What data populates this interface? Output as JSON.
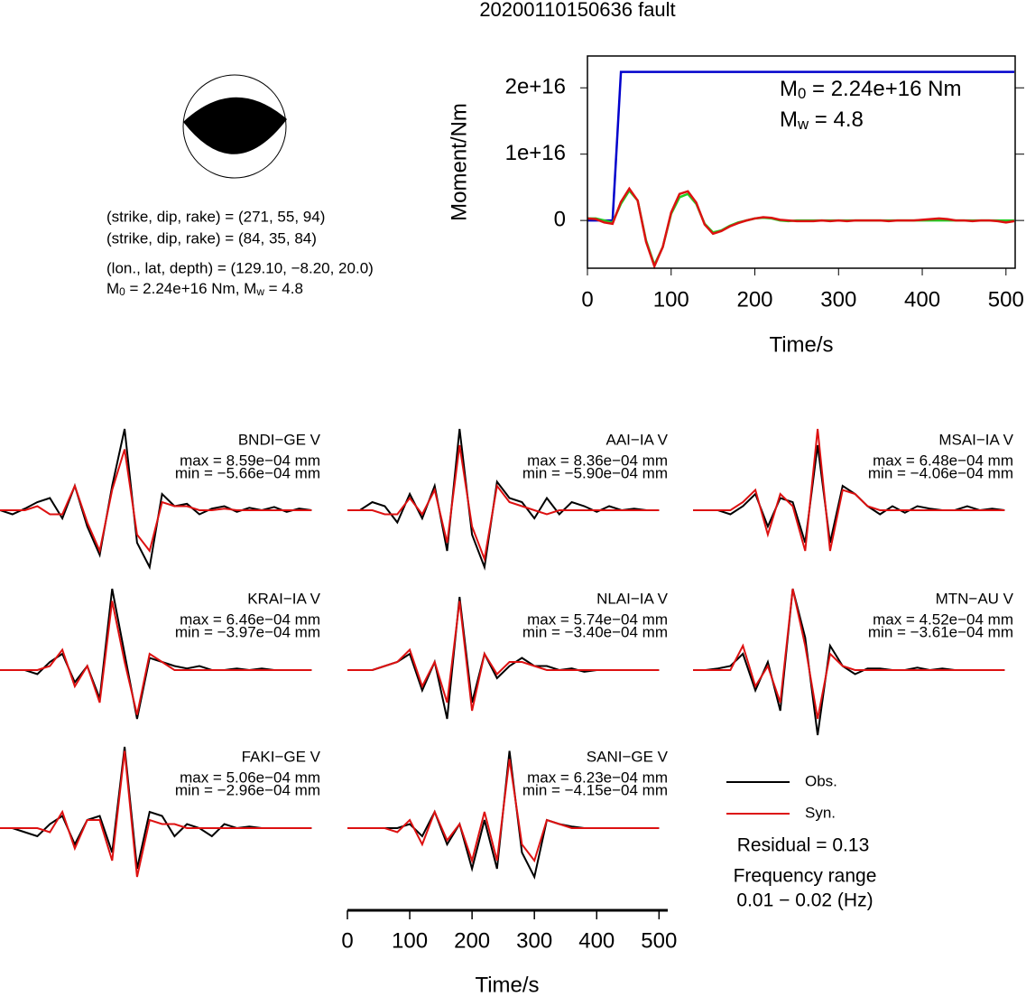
{
  "title": "20200110150636 fault",
  "focal_mechanism": {
    "planes": [
      "(strike, dip, rake) = (271, 55, 94)",
      "(strike, dip, rake) = (84, 35, 84)"
    ],
    "location": "(lon., lat, depth) = (129.10, −8.20, 20.0)",
    "magnitude": [
      "M",
      "0",
      " = 2.24e+16 Nm, M",
      "w",
      " = 4.8"
    ]
  },
  "chart_data": [
    {
      "type": "line",
      "xlabel": "Time/s",
      "ylabel": "Moment/Nm",
      "annotations": [
        [
          "M",
          "0",
          " = 2.24e+16 Nm"
        ],
        [
          "M",
          "w",
          " = 4.8"
        ]
      ],
      "xlim": [
        0,
        511
      ],
      "ylim": [
        -7200000000000000.0,
        2.48e+16
      ],
      "xticks": [
        0,
        100,
        200,
        300,
        400,
        500
      ],
      "yticks": [
        0,
        {
          "value": 1e+16,
          "label": "1e+16"
        },
        {
          "value": 2e+16,
          "label": "2e+16"
        }
      ],
      "x": [
        0,
        10,
        20,
        30,
        40,
        50,
        60,
        70,
        80,
        90,
        100,
        110,
        120,
        130,
        140,
        150,
        160,
        170,
        180,
        190,
        200,
        210,
        220,
        230,
        240,
        250,
        260,
        270,
        280,
        290,
        300,
        310,
        320,
        330,
        340,
        350,
        360,
        370,
        380,
        390,
        400,
        410,
        420,
        430,
        440,
        450,
        460,
        470,
        480,
        490,
        500,
        510
      ],
      "series": [
        {
          "color": "#0000cc",
          "values": [
            0,
            0,
            0,
            0,
            2.24e+16,
            2.24e+16,
            2.24e+16,
            2.24e+16,
            2.24e+16,
            2.24e+16,
            2.24e+16,
            2.24e+16,
            2.24e+16,
            2.24e+16,
            2.24e+16,
            2.24e+16,
            2.24e+16,
            2.24e+16,
            2.24e+16,
            2.24e+16,
            2.24e+16,
            2.24e+16,
            2.24e+16,
            2.24e+16,
            2.24e+16,
            2.24e+16,
            2.24e+16,
            2.24e+16,
            2.24e+16,
            2.24e+16,
            2.24e+16,
            2.24e+16,
            2.24e+16,
            2.24e+16,
            2.24e+16,
            2.24e+16,
            2.24e+16,
            2.24e+16,
            2.24e+16,
            2.24e+16,
            2.24e+16,
            2.24e+16,
            2.24e+16,
            2.24e+16,
            2.24e+16,
            2.24e+16,
            2.24e+16,
            2.24e+16,
            2.24e+16,
            2.24e+16,
            2.24e+16,
            2.24e+16
          ]
        },
        {
          "color": "#22cc22",
          "values": [
            300000000000000.0,
            300000000000000.0,
            0,
            -300000000000000.0,
            2500000000000000.0,
            4500000000000000.0,
            3000000000000000.0,
            -3000000000000000.0,
            -6700000000000000.0,
            -4000000000000000.0,
            1000000000000000.0,
            3500000000000000.0,
            4000000000000000.0,
            2500000000000000.0,
            -500000000000000.0,
            -1800000000000000.0,
            -1500000000000000.0,
            -800000000000000.0,
            -300000000000000.0,
            0,
            300000000000000.0,
            400000000000000.0,
            300000000000000.0,
            0,
            -100000000000000.0,
            0,
            0,
            0,
            0,
            0,
            0,
            0,
            0,
            0,
            0,
            0,
            0,
            0,
            0,
            0,
            0,
            0,
            0,
            0,
            0,
            0,
            0,
            0,
            0,
            0,
            0,
            0
          ]
        },
        {
          "color": "#dd1111",
          "values": [
            300000000000000.0,
            200000000000000.0,
            -300000000000000.0,
            -500000000000000.0,
            2800000000000000.0,
            4800000000000000.0,
            3000000000000000.0,
            -3200000000000000.0,
            -6900000000000000.0,
            -4000000000000000.0,
            1200000000000000.0,
            4000000000000000.0,
            4400000000000000.0,
            2700000000000000.0,
            -600000000000000.0,
            -2000000000000000.0,
            -1600000000000000.0,
            -900000000000000.0,
            -400000000000000.0,
            0,
            300000000000000.0,
            500000000000000.0,
            400000000000000.0,
            100000000000000.0,
            0,
            -100000000000000.0,
            -100000000000000.0,
            -100000000000000.0,
            0,
            -100000000000000.0,
            0,
            -100000000000000.0,
            0,
            0,
            0,
            0,
            -100000000000000.0,
            0,
            0,
            0,
            100000000000000.0,
            200000000000000.0,
            300000000000000.0,
            200000000000000.0,
            0,
            0,
            -100000000000000.0,
            0,
            0,
            -100000000000000.0,
            -300000000000000.0,
            -100000000000000.0
          ]
        }
      ]
    },
    {
      "type": "waveform",
      "xlabel": "Time/s",
      "xlim": [
        0,
        514
      ],
      "ylim": [
        -1,
        1
      ],
      "xticks": [
        0,
        100,
        200,
        300,
        400,
        500
      ],
      "x": [
        0,
        20,
        40,
        60,
        80,
        100,
        120,
        140,
        160,
        180,
        200,
        220,
        240,
        260,
        280,
        300,
        320,
        340,
        360,
        380,
        400,
        420,
        440,
        460,
        480,
        500
      ],
      "legend": [
        {
          "name": "Obs.",
          "color": "#000000"
        },
        {
          "name": "Syn.",
          "color": "#dd1111"
        }
      ],
      "residual": "Residual = 0.13",
      "frequency": [
        "Frequency range",
        "0.01 − 0.02 (Hz)"
      ],
      "stations": [
        {
          "name": "BNDI−GE V",
          "max_label": "max = 8.59e−04 mm",
          "min_label": "min = −5.66e−04 mm",
          "observed": [
            0,
            -0.05,
            0.02,
            0.1,
            0.15,
            -0.1,
            0.3,
            -0.2,
            -0.55,
            0.3,
            1.0,
            -0.4,
            -0.7,
            0.2,
            0.05,
            0.08,
            -0.05,
            0.02,
            0.05,
            -0.02,
            0.03,
            0,
            0.04,
            -0.02,
            0.02,
            0
          ],
          "synthetic": [
            0,
            0,
            0,
            0.05,
            -0.05,
            -0.05,
            0.3,
            -0.15,
            -0.5,
            0.25,
            0.75,
            -0.3,
            -0.5,
            0.1,
            0.05,
            0.05,
            0,
            0,
            0.02,
            0,
            0,
            0,
            0,
            0,
            0,
            0
          ]
        },
        {
          "name": "AAI−IA V",
          "max_label": "max = 8.36e−04 mm",
          "min_label": "min = −5.90e−04 mm",
          "observed": [
            0,
            0,
            0.1,
            0.05,
            -0.15,
            0.2,
            -0.1,
            0.3,
            -0.5,
            1.0,
            -0.3,
            -0.7,
            0.35,
            0.15,
            0.1,
            -0.1,
            0.15,
            -0.05,
            0.1,
            0.05,
            -0.02,
            0.05,
            0,
            0.02,
            0,
            0
          ],
          "synthetic": [
            0,
            0,
            0,
            -0.05,
            -0.05,
            0.15,
            -0.05,
            0.25,
            -0.4,
            0.8,
            -0.2,
            -0.6,
            0.3,
            0.1,
            0.05,
            0,
            -0.05,
            0,
            0,
            0,
            0,
            0,
            0,
            0,
            0,
            0
          ]
        },
        {
          "name": "MSAI−IA V",
          "max_label": "max = 6.48e−04 mm",
          "min_label": "min = −4.06e−04 mm",
          "observed": [
            0,
            0,
            0,
            -0.05,
            0.05,
            0.2,
            -0.2,
            0.15,
            0.1,
            -0.4,
            0.8,
            -0.4,
            0.3,
            0.2,
            0.05,
            -0.05,
            0.05,
            -0.03,
            0.05,
            0.02,
            0,
            0,
            0.05,
            0,
            0.02,
            0
          ],
          "synthetic": [
            0,
            0,
            0,
            0,
            0.1,
            0.25,
            -0.3,
            0.2,
            0.05,
            -0.5,
            1.0,
            -0.5,
            0.25,
            0.2,
            0.05,
            0,
            0,
            0,
            0,
            0,
            0,
            0,
            0,
            0,
            0,
            0
          ]
        },
        {
          "name": "KRAI−IA V",
          "max_label": "max = 6.46e−04 mm",
          "min_label": "min = −3.97e−04 mm",
          "observed": [
            0,
            0,
            0,
            -0.05,
            0.1,
            0.2,
            -0.15,
            0.05,
            -0.35,
            1.0,
            0.2,
            -0.6,
            0.15,
            0.1,
            0.05,
            0.02,
            0.05,
            0,
            0,
            0.02,
            0,
            0.02,
            0,
            0,
            0,
            0
          ],
          "synthetic": [
            0,
            0,
            0,
            0,
            0.05,
            0.25,
            -0.2,
            0.05,
            -0.4,
            0.85,
            0.1,
            -0.55,
            0.2,
            0.1,
            0,
            0,
            0,
            0,
            0,
            0,
            0,
            0,
            0,
            0,
            0,
            0
          ]
        },
        {
          "name": "NLAI−IA V",
          "max_label": "max = 5.74e−04 mm",
          "min_label": "min = −3.40e−04 mm",
          "observed": [
            0,
            0,
            0,
            0.05,
            0.1,
            0.2,
            -0.25,
            0.1,
            -0.6,
            0.9,
            -0.4,
            0.2,
            -0.1,
            0.05,
            0.15,
            0.05,
            0.05,
            0,
            0.02,
            -0.02,
            0,
            0,
            0,
            0,
            0,
            0
          ],
          "synthetic": [
            0,
            0,
            0,
            0.05,
            0.1,
            0.25,
            -0.2,
            0.1,
            -0.4,
            0.85,
            -0.5,
            0.2,
            -0.05,
            0.1,
            0.1,
            0.05,
            0,
            0,
            0,
            0,
            0,
            0,
            0,
            0,
            0,
            0
          ]
        },
        {
          "name": "MTN−AU V",
          "max_label": "max = 4.52e−04 mm",
          "min_label": "min = −3.61e−04 mm",
          "observed": [
            0,
            0,
            0.02,
            0.05,
            0.2,
            -0.25,
            0.1,
            -0.5,
            1.0,
            0.4,
            -0.8,
            0.3,
            0.05,
            -0.05,
            0.02,
            0.02,
            0,
            0,
            0.03,
            0,
            0.02,
            0,
            0,
            0,
            0,
            0
          ],
          "synthetic": [
            0,
            0,
            0,
            0,
            0.3,
            -0.2,
            0.05,
            -0.4,
            1.0,
            0.3,
            -0.6,
            0.2,
            0.05,
            0,
            0,
            0,
            0,
            0,
            0,
            0,
            0,
            0,
            0,
            0,
            0,
            0
          ]
        },
        {
          "name": "FAKI−GE V",
          "max_label": "max = 5.06e−04 mm",
          "min_label": "min = −2.96e−04 mm",
          "observed": [
            0,
            0,
            -0.05,
            -0.1,
            0.05,
            0.15,
            -0.2,
            0.1,
            0.15,
            -0.3,
            1.0,
            -0.5,
            0.2,
            0.15,
            -0.1,
            0.05,
            0,
            -0.1,
            0.05,
            0,
            0.02,
            0,
            0,
            0,
            0,
            0
          ],
          "synthetic": [
            0,
            0,
            0,
            0,
            -0.05,
            0.2,
            -0.25,
            0.1,
            0.1,
            -0.4,
            0.95,
            -0.6,
            0.1,
            0.05,
            0.05,
            0,
            0,
            0,
            0,
            0,
            0,
            0,
            0,
            0,
            0,
            0
          ]
        },
        {
          "name": "SANI−GE V",
          "max_label": "max = 6.23e−04 mm",
          "min_label": "min = −4.15e−04 mm",
          "observed": [
            0,
            0,
            0,
            0,
            0,
            0.05,
            -0.1,
            0.2,
            -0.2,
            0.05,
            -0.5,
            0.1,
            -0.5,
            0.95,
            -0.3,
            -0.6,
            0.1,
            0.05,
            0.02,
            0,
            0,
            0,
            0,
            0,
            0,
            0
          ],
          "synthetic": [
            0,
            0,
            0,
            0,
            -0.05,
            0.1,
            -0.2,
            0.2,
            -0.15,
            0.05,
            -0.4,
            0.2,
            -0.4,
            0.85,
            -0.2,
            -0.4,
            0.1,
            0.05,
            0,
            0,
            0,
            0,
            0,
            0,
            0,
            0
          ]
        }
      ]
    }
  ]
}
